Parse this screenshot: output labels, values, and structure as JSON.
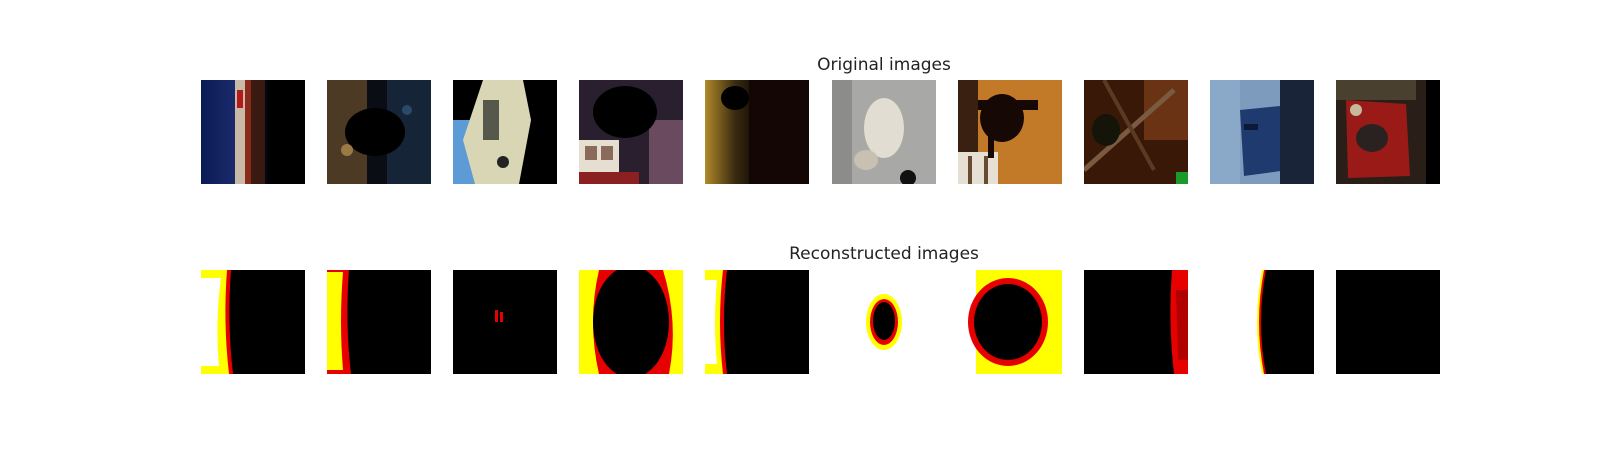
{
  "rows": {
    "original_title": "Original images",
    "reconstructed_title": "Reconstructed images"
  },
  "palette": {
    "black": "#000000",
    "red": "#e60000",
    "yellow": "#ffff00",
    "white": "#ffffff"
  },
  "original_images": [
    {
      "description": "ship-hull-blue-red"
    },
    {
      "description": "dark-animal-bluish"
    },
    {
      "description": "white-car-blue"
    },
    {
      "description": "dark-cat-indoor"
    },
    {
      "description": "dark-animal-golden-grass"
    },
    {
      "description": "grey-cat-light-background"
    },
    {
      "description": "horses-orange-ground"
    },
    {
      "description": "frog-brown-branches"
    },
    {
      "description": "ship-blue-sky"
    },
    {
      "description": "red-car-dark"
    }
  ],
  "reconstructed_images": [
    {
      "description": "left-band-white-yellow-red"
    },
    {
      "description": "left-band-yellow-red"
    },
    {
      "description": "black-with-tiny-red-dot"
    },
    {
      "description": "ring-yellow-red-border"
    },
    {
      "description": "left-band-white-yellow"
    },
    {
      "description": "white-with-black-blob"
    },
    {
      "description": "yellow-with-black-ring"
    },
    {
      "description": "black-with-right-red-stripes"
    },
    {
      "description": "white-left-black-right"
    },
    {
      "description": "all-black"
    }
  ]
}
